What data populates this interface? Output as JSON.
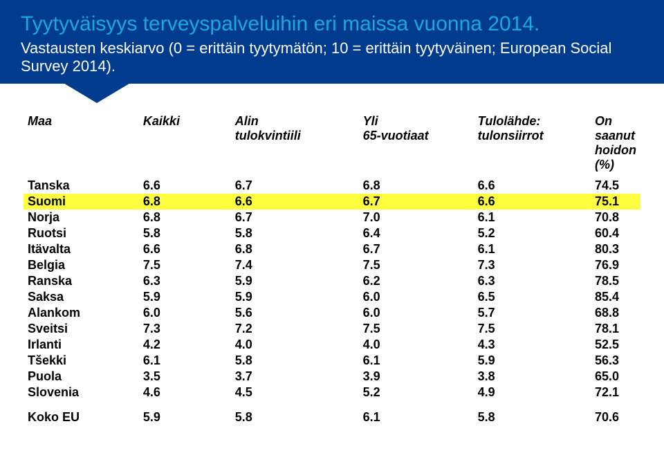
{
  "header": {
    "title": "Tyytyväisyys terveyspalveluihin eri maissa vuonna 2014.",
    "subtitle": "Vastausten keskiarvo (0 = erittäin tyytymätön; 10 = erittäin tyytyväinen; European Social Survey 2014)."
  },
  "columns": {
    "c0": "Maa",
    "c1": "Kaikki",
    "c2": "Alin\ntulokvintiili",
    "c3": "Yli\n65-vuotiaat",
    "c4": "Tulolähde:\ntulonsiirrot",
    "c5": "On saanut\nhoidon (%)"
  },
  "rows": [
    {
      "country": "Tanska",
      "v": [
        "6.6",
        "6.7",
        "6.8",
        "6.6",
        "74.5"
      ],
      "highlight": false
    },
    {
      "country": "Suomi",
      "v": [
        "6.8",
        "6.6",
        "6.7",
        "6.6",
        "75.1"
      ],
      "highlight": true
    },
    {
      "country": "Norja",
      "v": [
        "6.8",
        "6.7",
        "7.0",
        "6.1",
        "70.8"
      ],
      "highlight": false
    },
    {
      "country": "Ruotsi",
      "v": [
        "5.8",
        "5.8",
        "6.4",
        "5.2",
        "60.4"
      ],
      "highlight": false
    },
    {
      "country": "Itävalta",
      "v": [
        "6.6",
        "6.8",
        "6.7",
        "6.1",
        "80.3"
      ],
      "highlight": false
    },
    {
      "country": "Belgia",
      "v": [
        "7.5",
        "7.4",
        "7.5",
        "7.3",
        "76.9"
      ],
      "highlight": false
    },
    {
      "country": "Ranska",
      "v": [
        "6.3",
        "5.9",
        "6.2",
        "6.3",
        "78.5"
      ],
      "highlight": false
    },
    {
      "country": "Saksa",
      "v": [
        "5.9",
        "5.9",
        "6.0",
        "6.5",
        "85.4"
      ],
      "highlight": false
    },
    {
      "country": "Alankom",
      "v": [
        "6.0",
        "5.6",
        "6.0",
        "5.7",
        "68.8"
      ],
      "highlight": false
    },
    {
      "country": "Sveitsi",
      "v": [
        "7.3",
        "7.2",
        "7.5",
        "7.5",
        "78.1"
      ],
      "highlight": false
    },
    {
      "country": "Irlanti",
      "v": [
        "4.2",
        "4.0",
        "4.0",
        "4.3",
        "52.5"
      ],
      "highlight": false
    },
    {
      "country": "Tšekki",
      "v": [
        "6.1",
        "5.8",
        "6.1",
        "5.9",
        "56.3"
      ],
      "highlight": false
    },
    {
      "country": "Puola",
      "v": [
        "3.5",
        "3.7",
        "3.9",
        "3.8",
        "65.0"
      ],
      "highlight": false
    },
    {
      "country": "Slovenia",
      "v": [
        "4.6",
        "4.5",
        "5.2",
        "4.9",
        "72.1"
      ],
      "highlight": false
    }
  ],
  "total": {
    "country": "Koko EU",
    "v": [
      "5.9",
      "5.8",
      "6.1",
      "5.8",
      "70.6"
    ]
  },
  "colors": {
    "header_bg": "#003b8e",
    "title": "#1ba8e0",
    "subtitle": "#ffffff",
    "highlight": "#ffff3f",
    "body_bg": "#ffffff",
    "text": "#000000"
  }
}
